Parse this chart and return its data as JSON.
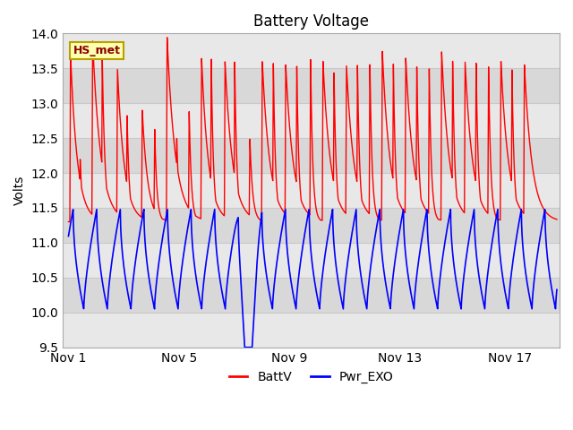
{
  "title": "Battery Voltage",
  "ylabel": "Volts",
  "ylim": [
    9.5,
    14.0
  ],
  "yticks": [
    9.5,
    10.0,
    10.5,
    11.0,
    11.5,
    12.0,
    12.5,
    13.0,
    13.5,
    14.0
  ],
  "xtick_labels": [
    "Nov 1",
    "Nov 5",
    "Nov 9",
    "Nov 13",
    "Nov 17"
  ],
  "xtick_positions": [
    0,
    4,
    8,
    12,
    16
  ],
  "xlim": [
    -0.2,
    17.8
  ],
  "legend_entries": [
    "BattV",
    "Pwr_EXO"
  ],
  "batt_color": "#ff0000",
  "exo_color": "#0000ff",
  "annotation_text": "HS_met",
  "bg_color": "#ffffff",
  "plot_bg_light": "#e8e8e8",
  "plot_bg_dark": "#d8d8d8",
  "grid_color": "#c8c8c8",
  "title_fontsize": 12,
  "label_fontsize": 10,
  "tick_fontsize": 10
}
